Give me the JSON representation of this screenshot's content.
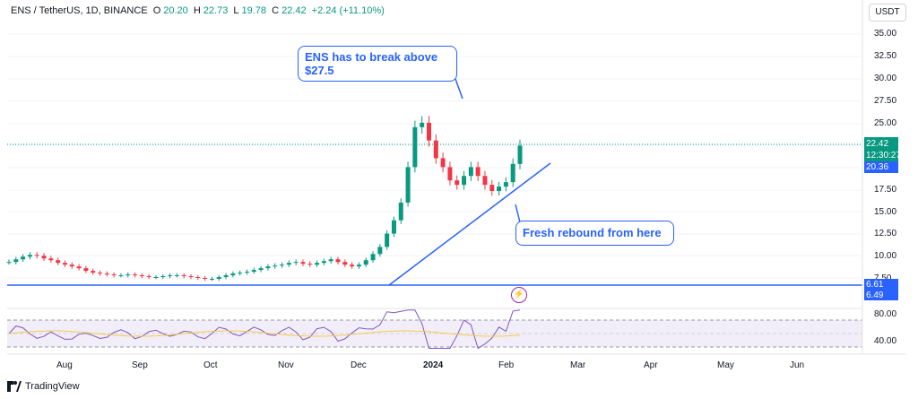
{
  "header": {
    "symbol": "ENS / TetherUS, 1D, BINANCE",
    "o_label": "O",
    "o_value": "20.20",
    "h_label": "H",
    "h_value": "22.73",
    "l_label": "L",
    "l_value": "19.78",
    "c_label": "C",
    "c_value": "22.42",
    "change": "+2.24 (+11.10%)"
  },
  "currency_button": "USDT",
  "y_axis": [
    "35.00",
    "32.50",
    "30.00",
    "27.50",
    "25.00",
    "22.50",
    "20.00",
    "17.50",
    "15.00",
    "12.50",
    "10.00",
    "7.50"
  ],
  "price_tags": {
    "last": "22.42",
    "countdown": "12:30:27",
    "prior": "20.36",
    "level_a": "6.61",
    "level_b": "6.49"
  },
  "rsi_axis": [
    "80.00",
    "40.00"
  ],
  "x_axis": [
    "Aug",
    "Sep",
    "Oct",
    "Nov",
    "Dec",
    "2024",
    "Feb",
    "Mar",
    "Apr",
    "May",
    "Jun"
  ],
  "callouts": {
    "top": "ENS has to break above $27.5",
    "bottom": "Fresh rebound from here"
  },
  "brand": "TradingView",
  "colors": {
    "up": "#089981",
    "down": "#f23645",
    "accent": "#2962ff",
    "rsi": "#7e57c2"
  },
  "chart_data": {
    "type": "candlestick",
    "series": [
      {
        "name": "ENS / TetherUS",
        "close": [
          9.3,
          9.6,
          9.9,
          10.1,
          10.0,
          9.7,
          9.5,
          9.2,
          9.0,
          8.8,
          8.6,
          8.3,
          8.1,
          8.0,
          7.9,
          7.8,
          7.8,
          7.9,
          7.8,
          7.7,
          7.6,
          7.6,
          7.7,
          7.8,
          7.8,
          7.7,
          7.6,
          7.5,
          7.4,
          7.4,
          7.6,
          7.8,
          8.0,
          8.1,
          8.2,
          8.4,
          8.6,
          8.8,
          8.9,
          9.0,
          9.2,
          9.3,
          9.1,
          9.0,
          9.2,
          9.4,
          9.6,
          9.3,
          9.0,
          8.8,
          9.0,
          9.5,
          10.2,
          11.0,
          12.5,
          14.0,
          16.0,
          20.0,
          24.5,
          25.0,
          23.0,
          21.0,
          20.0,
          18.5,
          18.0,
          19.0,
          20.0,
          19.0,
          18.0,
          17.3,
          17.8,
          18.3,
          20.36,
          22.42
        ]
      }
    ],
    "key_levels": [
      27.5,
      6.61,
      6.49
    ],
    "ylim": [
      6,
      36
    ]
  }
}
